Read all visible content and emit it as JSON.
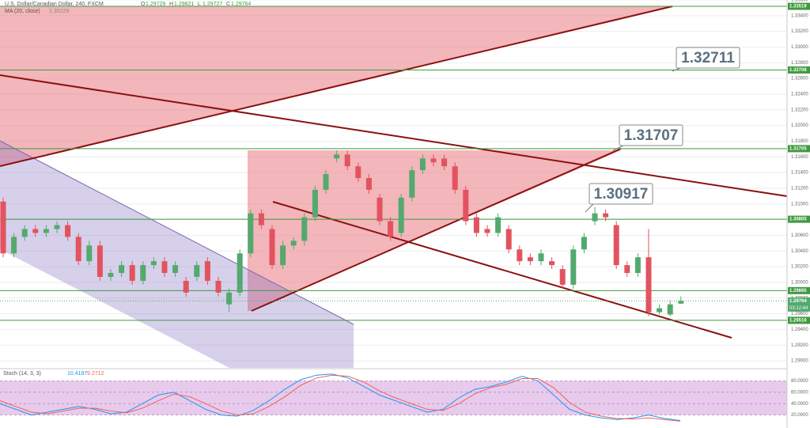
{
  "chart_data": [
    {
      "type": "candlestick",
      "title": "U.S. Dollar/Canadian Dollar, 240, FXCM",
      "ohlc_labels": [
        "O",
        "H",
        "L",
        "C"
      ],
      "indicator": "MA (20, close)",
      "indicator_value": 1.30229,
      "categories": [
        null,
        null,
        null,
        null,
        null,
        null,
        null,
        null,
        null,
        null,
        null,
        null,
        null,
        null,
        null,
        null,
        null,
        null,
        null,
        null,
        null,
        null,
        null,
        null,
        null,
        null,
        null,
        null,
        null,
        null,
        null,
        null,
        null,
        null,
        null,
        null,
        null,
        null,
        null,
        null,
        null,
        null,
        null,
        null,
        null,
        null,
        null,
        null,
        null,
        null,
        null,
        null,
        null,
        null,
        null,
        null,
        null,
        null,
        null,
        null,
        null,
        null,
        null,
        null
      ],
      "open": [
        1.3103,
        1.3037,
        1.3058,
        1.3068,
        1.3063,
        1.3068,
        1.3073,
        1.3058,
        1.3027,
        1.3047,
        1.3007,
        1.3012,
        1.3022,
        1.3002,
        1.3022,
        1.3027,
        1.3012,
        1.3002,
        1.3007,
        1.3027,
        1.3002,
        1.2972,
        1.2987,
        1.3037,
        1.3088,
        1.3068,
        1.3022,
        1.3047,
        1.3053,
        1.3083,
        1.3118,
        1.3158,
        1.3163,
        1.3148,
        1.3133,
        1.3108,
        1.3078,
        1.3063,
        1.3108,
        1.3143,
        1.3158,
        1.3158,
        1.3148,
        1.3118,
        1.3083,
        1.3068,
        1.3063,
        1.3068,
        1.3042,
        1.3032,
        1.3027,
        1.3027,
        1.3017,
        1.2997,
        1.3042,
        1.3078,
        1.3088,
        1.3073,
        1.3022,
        1.3012,
        1.3032,
        1.2962,
        1.2959,
        1.29729
      ],
      "high": [
        1.3108,
        1.3063,
        1.3073,
        1.3073,
        1.3073,
        1.3078,
        1.3078,
        1.3063,
        1.3053,
        1.3053,
        1.3017,
        1.3027,
        1.3027,
        1.3027,
        1.3032,
        1.3032,
        1.3027,
        1.3007,
        1.3027,
        1.3032,
        1.3007,
        1.2992,
        1.3042,
        1.3093,
        1.3093,
        1.3073,
        1.3053,
        1.3058,
        1.3088,
        1.3123,
        1.3143,
        1.3168,
        1.3168,
        1.3153,
        1.3138,
        1.3113,
        1.3083,
        1.3113,
        1.3148,
        1.3163,
        1.3163,
        1.3163,
        1.3153,
        1.3123,
        1.3088,
        1.3073,
        1.3088,
        1.3073,
        1.3047,
        1.3037,
        1.3042,
        1.3032,
        1.3022,
        1.3047,
        1.3063,
        1.3096,
        1.3093,
        1.3078,
        1.3027,
        1.3037,
        1.3068,
        1.2972,
        1.2977,
        1.29821
      ],
      "low": [
        1.3032,
        1.3032,
        1.3053,
        1.3058,
        1.3058,
        1.3063,
        1.3053,
        1.3022,
        1.3022,
        1.3002,
        1.3002,
        1.3007,
        1.2997,
        1.2997,
        1.3017,
        1.3007,
        1.3007,
        1.2982,
        1.3002,
        1.2997,
        1.2982,
        1.2962,
        1.2982,
        1.3032,
        1.3068,
        1.3017,
        1.3017,
        1.3042,
        1.3047,
        1.3078,
        1.3113,
        1.3153,
        1.3143,
        1.3128,
        1.3113,
        1.3073,
        1.3053,
        1.3058,
        1.3103,
        1.3138,
        1.3148,
        1.3143,
        1.3113,
        1.3073,
        1.3058,
        1.3058,
        1.3058,
        1.3037,
        1.3022,
        1.3022,
        1.3022,
        1.3017,
        1.2992,
        1.2992,
        1.3037,
        1.3073,
        1.3078,
        1.3017,
        1.3007,
        1.3007,
        1.2957,
        1.2959,
        1.2957,
        1.29727
      ],
      "close": [
        1.3037,
        1.3058,
        1.3068,
        1.3063,
        1.3068,
        1.3073,
        1.3058,
        1.3027,
        1.3047,
        1.3007,
        1.3012,
        1.3022,
        1.3002,
        1.3022,
        1.3027,
        1.3012,
        1.3022,
        1.2987,
        1.3022,
        1.3002,
        1.2987,
        1.2987,
        1.3037,
        1.3088,
        1.3073,
        1.3022,
        1.3047,
        1.3053,
        1.3083,
        1.3118,
        1.3138,
        1.3163,
        1.3148,
        1.3133,
        1.3118,
        1.3078,
        1.3058,
        1.3108,
        1.3143,
        1.3158,
        1.3153,
        1.3148,
        1.3118,
        1.3078,
        1.3063,
        1.3063,
        1.3083,
        1.3042,
        1.3027,
        1.3027,
        1.3037,
        1.3022,
        1.2997,
        1.3042,
        1.3058,
        1.3088,
        1.3083,
        1.3022,
        1.3012,
        1.3032,
        1.2962,
        1.2967,
        1.2972,
        1.29764
      ],
      "up_color": "#53a96e",
      "down_color": "#e2535f",
      "ylim": [
        1.2891,
        1.336
      ],
      "yticks": [
        {
          "value": 1.29,
          "label": "1.29000"
        },
        {
          "value": 1.292,
          "label": "1.29200"
        },
        {
          "value": 1.294,
          "label": "1.29400"
        },
        {
          "value": 1.296,
          "label": "1.29600"
        },
        {
          "value": 1.298,
          "label": "1.29800"
        },
        {
          "value": 1.3,
          "label": "1.30000"
        },
        {
          "value": 1.302,
          "label": "1.30200"
        },
        {
          "value": 1.304,
          "label": "1.30400"
        },
        {
          "value": 1.306,
          "label": "1.30600"
        },
        {
          "value": 1.308,
          "label": "1.30800"
        },
        {
          "value": 1.31,
          "label": "1.31000"
        },
        {
          "value": 1.312,
          "label": "1.31200"
        },
        {
          "value": 1.314,
          "label": "1.31400"
        },
        {
          "value": 1.316,
          "label": "1.31600"
        },
        {
          "value": 1.318,
          "label": "1.31800"
        },
        {
          "value": 1.32,
          "label": "1.32000"
        },
        {
          "value": 1.322,
          "label": "1.32200"
        },
        {
          "value": 1.324,
          "label": "1.32400"
        },
        {
          "value": 1.326,
          "label": "1.32600"
        },
        {
          "value": 1.328,
          "label": "1.32800"
        },
        {
          "value": 1.33,
          "label": "1.33000"
        },
        {
          "value": 1.332,
          "label": "1.33200"
        },
        {
          "value": 1.334,
          "label": "1.33400"
        },
        {
          "value": 1.336,
          "label": "1.33600"
        }
      ],
      "levels": [
        1.33519,
        1.32708,
        1.31705,
        1.30805,
        1.29895,
        1.29516
      ],
      "level_color": "#3f9a3f",
      "countdown": "03:12:44",
      "annotations": [
        "1.32711",
        "1.31707",
        "1.30917"
      ]
    },
    {
      "type": "line",
      "title": "Stoch (14, 3, 3)",
      "ylim": [
        0,
        100
      ],
      "yticks": [
        {
          "value": 20,
          "label": "20.0000"
        },
        {
          "value": 40,
          "label": "40.0000"
        },
        {
          "value": 60,
          "label": "60.0000"
        },
        {
          "value": 80,
          "label": "80.0000"
        }
      ],
      "series": [
        {
          "color": "#2196f3",
          "values": [
            40,
            30,
            20,
            25,
            30,
            35,
            30,
            22,
            25,
            40,
            55,
            60,
            45,
            30,
            20,
            18,
            28,
            45,
            65,
            82,
            90,
            92,
            85,
            70,
            55,
            45,
            35,
            25,
            30,
            50,
            65,
            70,
            78,
            88,
            80,
            55,
            30,
            20,
            15,
            12,
            15,
            20,
            14,
            10.4187
          ]
        },
        {
          "color": "#f0605a",
          "values": [
            45,
            35,
            25,
            22,
            27,
            32,
            32,
            27,
            24,
            32,
            45,
            57,
            52,
            40,
            27,
            20,
            22,
            35,
            52,
            72,
            85,
            90,
            88,
            78,
            62,
            50,
            40,
            30,
            28,
            40,
            57,
            68,
            74,
            84,
            84,
            68,
            42,
            25,
            18,
            14,
            13,
            15,
            12,
            9.2712
          ]
        }
      ]
    }
  ]
}
